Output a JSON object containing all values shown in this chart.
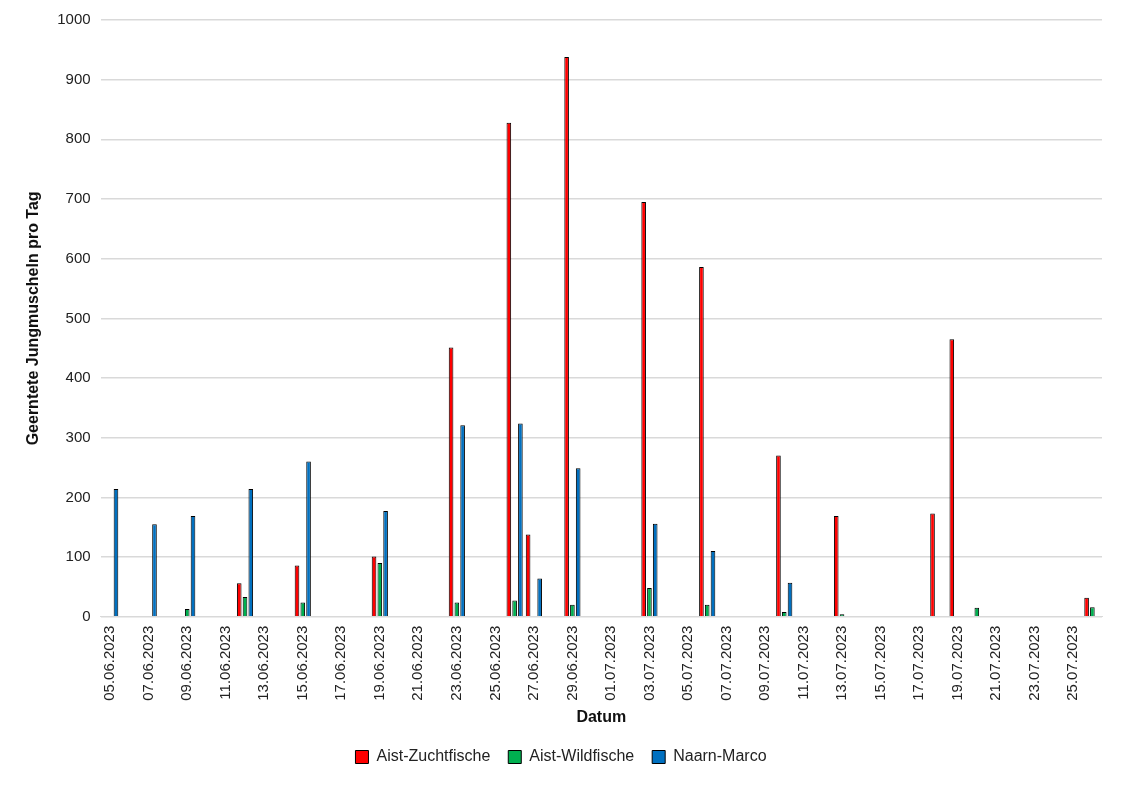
{
  "chart_data": {
    "type": "bar",
    "xlabel": "Datum",
    "ylabel": "Geerntete Jungmuscheln pro Tag",
    "categories": [
      "05.06.2023",
      null,
      "07.06.2023",
      null,
      "09.06.2023",
      null,
      "11.06.2023",
      null,
      "13.06.2023",
      null,
      "15.06.2023",
      null,
      "17.06.2023",
      null,
      "19.06.2023",
      null,
      "21.06.2023",
      null,
      "23.06.2023",
      null,
      "25.06.2023",
      null,
      "27.06.2023",
      null,
      "29.06.2023",
      null,
      "01.07.2023",
      null,
      "03.07.2023",
      null,
      "05.07.2023",
      null,
      "07.07.2023",
      null,
      "09.07.2023",
      null,
      "11.07.2023",
      null,
      "13.07.2023",
      null,
      "15.07.2023",
      null,
      "17.07.2023",
      null,
      "19.07.2023",
      null,
      "21.07.2023",
      null,
      "23.07.2023",
      null,
      "25.07.2023",
      null
    ],
    "series": [
      {
        "name": "Aist-Zuchtfische",
        "color": "#ff0000",
        "values": [
          null,
          null,
          null,
          null,
          null,
          null,
          null,
          56,
          null,
          null,
          86,
          null,
          null,
          null,
          101,
          null,
          null,
          null,
          451,
          null,
          null,
          828,
          138,
          null,
          938,
          null,
          null,
          null,
          695,
          null,
          null,
          586,
          null,
          null,
          null,
          270,
          null,
          null,
          169,
          null,
          null,
          null,
          null,
          173,
          465,
          null,
          null,
          null,
          null,
          null,
          null,
          32
        ]
      },
      {
        "name": "Aist-Wildfische",
        "color": "#00b050",
        "values": [
          null,
          null,
          null,
          null,
          13,
          null,
          null,
          33,
          null,
          null,
          24,
          null,
          null,
          null,
          90,
          null,
          null,
          null,
          24,
          null,
          null,
          27,
          null,
          null,
          20,
          null,
          null,
          null,
          48,
          null,
          null,
          20,
          null,
          null,
          null,
          8,
          null,
          null,
          4,
          null,
          null,
          null,
          null,
          null,
          null,
          15,
          null,
          null,
          null,
          null,
          null,
          16
        ]
      },
      {
        "name": "Naarn-Marco",
        "color": "#0070c0",
        "values": [
          214,
          null,
          155,
          null,
          169,
          null,
          null,
          214,
          null,
          null,
          260,
          null,
          null,
          null,
          177,
          null,
          null,
          null,
          321,
          null,
          null,
          324,
          64,
          null,
          249,
          null,
          null,
          null,
          156,
          null,
          null,
          110,
          null,
          null,
          null,
          57,
          null,
          null,
          null,
          null,
          null,
          null,
          null,
          null,
          null,
          null,
          null,
          null,
          null,
          null,
          null,
          null
        ]
      }
    ],
    "ylim": [
      0,
      1000
    ],
    "yticks": [
      0,
      100,
      200,
      300,
      400,
      500,
      600,
      700,
      800,
      900,
      1000
    ],
    "grid": "y",
    "legend": "bottom"
  }
}
